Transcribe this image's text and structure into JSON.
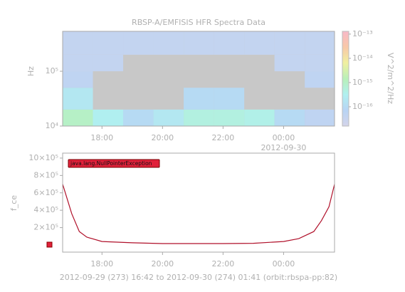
{
  "chart_data": [
    {
      "type": "heatmap",
      "title": "RBSP-A/EMFISIS  HFR Spectra Data",
      "ylabel": "Hz",
      "zlabel": "V^2/m^2/Hz",
      "x": [
        "2012-09-29T16:42",
        "2012-09-29T17:42",
        "2012-09-29T18:42",
        "2012-09-29T19:42",
        "2012-09-29T20:42",
        "2012-09-29T21:42",
        "2012-09-29T22:42",
        "2012-09-29T23:42",
        "2012-09-30T00:42",
        "2012-09-30T01:41"
      ],
      "y": [
        10000,
        20000,
        50000,
        100000,
        200000,
        535000
      ],
      "z": [
        [
          1e-15,
          3e-16,
          1e-16,
          2e-16,
          5e-16,
          5e-16,
          4e-16,
          1e-16,
          5e-17
        ],
        [
          2e-16,
          null,
          null,
          null,
          1e-16,
          1e-16,
          null,
          null,
          null
        ],
        [
          5e-17,
          null,
          null,
          null,
          null,
          null,
          null,
          null,
          5e-17
        ],
        [
          4e-17,
          4e-17,
          null,
          null,
          null,
          null,
          null,
          4e-17,
          4e-17
        ],
        [
          4e-17,
          4e-17,
          4e-17,
          4e-17,
          4e-17,
          4e-17,
          4e-17,
          4e-17,
          4e-17
        ]
      ],
      "fill_color": "#c8c8c8",
      "colormap": [
        "#d4d4ea",
        "#b8d4f4",
        "#b0f0f0",
        "#b8f0b8",
        "#f0f0a0",
        "#f8c8a8",
        "#f8b8c8"
      ],
      "xlim": [
        "2012-09-29T16:42",
        "2012-09-30T01:41"
      ],
      "xticks": [
        {
          "value": "2012-09-29T18:00",
          "label": "18:00"
        },
        {
          "value": "2012-09-29T20:00",
          "label": "20:00"
        },
        {
          "value": "2012-09-29T22:00",
          "label": "22:00"
        },
        {
          "value": "2012-09-30T00:00",
          "label": "00:00"
        }
      ],
      "x_date_label": {
        "value": "2012-09-30T00:00",
        "label": "2012-09-30"
      },
      "ylim": [
        10000,
        535000
      ],
      "ylog": true,
      "yticks": [
        {
          "value": 10000,
          "label": "10⁴"
        },
        {
          "value": 100000,
          "label": "10⁵"
        }
      ],
      "zlim": [
        1.6e-17,
        1.3e-13
      ],
      "zlog": true,
      "zticks": [
        {
          "value": 1e-13,
          "label": "10⁻¹³"
        },
        {
          "value": 1e-14,
          "label": "10⁻¹⁴"
        },
        {
          "value": 1e-15,
          "label": "10⁻¹⁵"
        },
        {
          "value": 1e-16,
          "label": "10⁻¹⁶"
        }
      ]
    },
    {
      "type": "line",
      "ylabel": "f_ce",
      "xlabel": "2012-09-29 (273) 16:42 to 2012-09-30 (274) 01:41 (orbit:rbspa-pp:82)",
      "annotation": "java.lang.NullPointerException",
      "color": "#b0102a",
      "x": [
        "2012-09-29T16:42",
        "2012-09-29T17:00",
        "2012-09-29T17:15",
        "2012-09-29T17:30",
        "2012-09-29T18:00",
        "2012-09-29T19:00",
        "2012-09-29T20:00",
        "2012-09-29T21:00",
        "2012-09-29T22:00",
        "2012-09-29T23:00",
        "2012-09-30T00:00",
        "2012-09-30T00:30",
        "2012-09-30T01:00",
        "2012-09-30T01:15",
        "2012-09-30T01:30",
        "2012-09-30T01:41"
      ],
      "values": [
        700000,
        360000,
        155000,
        90000,
        40000,
        25000,
        16000,
        16000,
        16000,
        20000,
        40000,
        73000,
        155000,
        280000,
        440000,
        700000
      ],
      "xlim": [
        "2012-09-29T16:42",
        "2012-09-30T01:41"
      ],
      "xticks": [
        {
          "value": "2012-09-29T18:00",
          "label": "18:00"
        },
        {
          "value": "2012-09-29T20:00",
          "label": "20:00"
        },
        {
          "value": "2012-09-29T22:00",
          "label": "22:00"
        },
        {
          "value": "2012-09-30T00:00",
          "label": "00:00"
        }
      ],
      "ylim": [
        -82000,
        1057000
      ],
      "yticks": [
        {
          "value": 200000,
          "label": "2×10⁵"
        },
        {
          "value": 400000,
          "label": "4×10⁵"
        },
        {
          "value": 600000,
          "label": "6×10⁵"
        },
        {
          "value": 800000,
          "label": "8×10⁵"
        },
        {
          "value": 1000000,
          "label": "10×10⁵"
        }
      ]
    }
  ]
}
